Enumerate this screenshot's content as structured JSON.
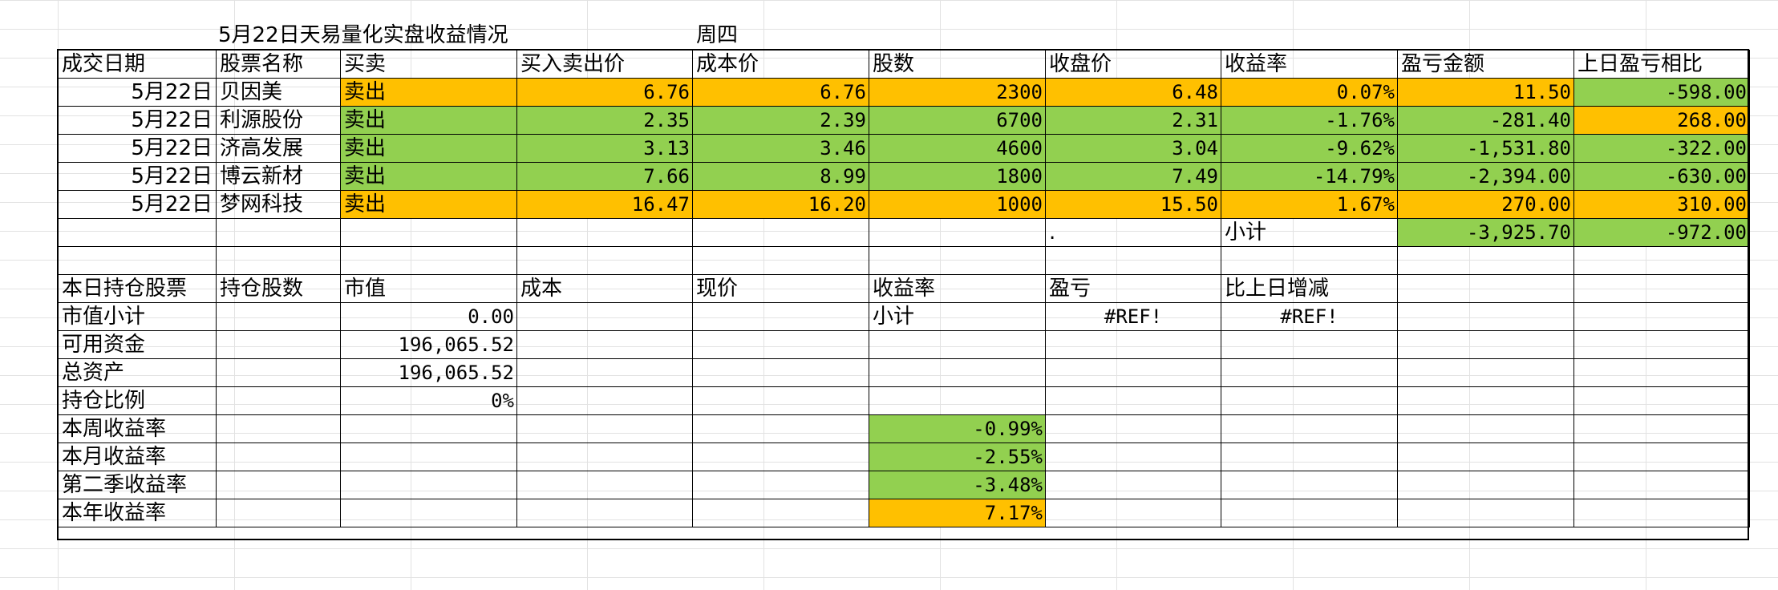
{
  "header": {
    "title": "5月22日天易量化实盘收益情况",
    "weekday": "周四"
  },
  "trades": {
    "headers": [
      "成交日期",
      "股票名称",
      "买卖",
      "买入卖出价",
      "成本价",
      "股数",
      "收盘价",
      "收益率",
      "盈亏金额",
      "上日盈亏相比"
    ],
    "rows": [
      {
        "date": "5月22日",
        "name": "贝因美",
        "action": "卖出",
        "price": "6.76",
        "cost": "6.76",
        "shares": "2300",
        "close": "6.48",
        "return": "0.07%",
        "pnl": "11.50",
        "vs_prev": "-598.00"
      },
      {
        "date": "5月22日",
        "name": "利源股份",
        "action": "卖出",
        "price": "2.35",
        "cost": "2.39",
        "shares": "6700",
        "close": "2.31",
        "return": "-1.76%",
        "pnl": "-281.40",
        "vs_prev": "268.00"
      },
      {
        "date": "5月22日",
        "name": "济高发展",
        "action": "卖出",
        "price": "3.13",
        "cost": "3.46",
        "shares": "4600",
        "close": "3.04",
        "return": "-9.62%",
        "pnl": "-1,531.80",
        "vs_prev": "-322.00"
      },
      {
        "date": "5月22日",
        "name": "博云新材",
        "action": "卖出",
        "price": "7.66",
        "cost": "8.99",
        "shares": "1800",
        "close": "7.49",
        "return": "-14.79%",
        "pnl": "-2,394.00",
        "vs_prev": "-630.00"
      },
      {
        "date": "5月22日",
        "name": "梦网科技",
        "action": "卖出",
        "price": "16.47",
        "cost": "16.20",
        "shares": "1000",
        "close": "15.50",
        "return": "1.67%",
        "pnl": "270.00",
        "vs_prev": "310.00"
      }
    ],
    "subtotal": {
      "dot": ".",
      "label": "小计",
      "pnl": "-3,925.70",
      "vs_prev": "-972.00"
    }
  },
  "holdings": {
    "headers": [
      "本日持仓股票",
      "持仓股数",
      "市值",
      "成本",
      "现价",
      "收益率",
      "盈亏",
      "比上日增减"
    ],
    "market_value_label": "市值小计",
    "market_value": "0.00",
    "subtotal_label": "小计",
    "pnl_ref": "#REF!",
    "change_ref": "#REF!",
    "cash_label": "可用资金",
    "cash": "196,065.52",
    "assets_label": "总资产",
    "assets": "196,065.52",
    "ratio_label": "持仓比例",
    "ratio": "0%"
  },
  "returns": {
    "week_label": "本周收益率",
    "week": "-0.99%",
    "month_label": "本月收益率",
    "month": "-2.55%",
    "quarter_label": "第二季收益率",
    "quarter": "-3.48%",
    "year_label": "本年收益率",
    "year": "7.17%"
  },
  "colors": {
    "orange": "#ffc000",
    "green": "#92d050",
    "gridline": "#e2e2e2"
  }
}
